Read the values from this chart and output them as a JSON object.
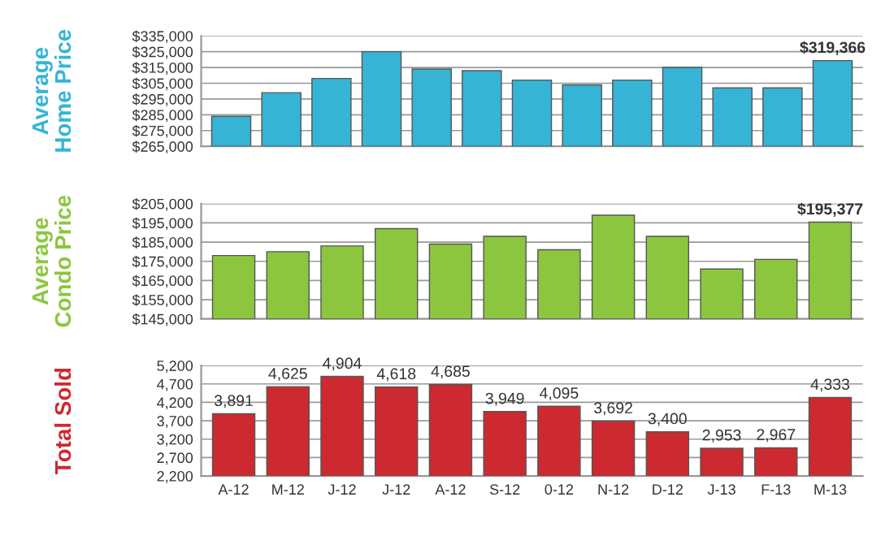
{
  "chart_data": [
    {
      "type": "bar",
      "ylabel": "Average\nHome Price",
      "categories": [
        null,
        null,
        null,
        null,
        null,
        null,
        null,
        null,
        null,
        null,
        null,
        null,
        null
      ],
      "series": [
        {
          "color": "#35b4d6",
          "values": [
            284000,
            299000,
            308000,
            325000,
            314000,
            313000,
            307000,
            304000,
            307000,
            315000,
            302000,
            302000,
            319366
          ],
          "value_labels": [
            null,
            null,
            null,
            null,
            null,
            null,
            null,
            null,
            null,
            null,
            null,
            null,
            "$319,366"
          ]
        }
      ],
      "ylim": [
        265000,
        335000
      ],
      "yticks": [
        {
          "value": 265000,
          "label": "$265,000"
        },
        {
          "value": 275000,
          "label": "$275,000"
        },
        {
          "value": 285000,
          "label": "$285,000"
        },
        {
          "value": 295000,
          "label": "$295,000"
        },
        {
          "value": 305000,
          "label": "$305,000"
        },
        {
          "value": 315000,
          "label": "$315,000"
        },
        {
          "value": 325000,
          "label": "$325,000"
        },
        {
          "value": 335000,
          "label": "$335,000"
        }
      ],
      "grid": "y",
      "tick_labels": "y"
    },
    {
      "type": "bar",
      "ylabel": "Average\nCondo Price",
      "categories": [
        null,
        null,
        null,
        null,
        null,
        null,
        null,
        null,
        null,
        null,
        null,
        null
      ],
      "series": [
        {
          "color": "#8cc63e",
          "values": [
            178000,
            180000,
            183000,
            192000,
            184000,
            188000,
            181000,
            199000,
            188000,
            171000,
            176000,
            195377
          ],
          "value_labels": [
            null,
            null,
            null,
            null,
            null,
            null,
            null,
            null,
            null,
            null,
            null,
            "$195,377"
          ]
        }
      ],
      "ylim": [
        145000,
        205000
      ],
      "yticks": [
        {
          "value": 145000,
          "label": "$145,000"
        },
        {
          "value": 155000,
          "label": "$155,000"
        },
        {
          "value": 165000,
          "label": "$165,000"
        },
        {
          "value": 175000,
          "label": "$175,000"
        },
        {
          "value": 185000,
          "label": "$185,000"
        },
        {
          "value": 195000,
          "label": "$195,000"
        },
        {
          "value": 205000,
          "label": "$205,000"
        }
      ],
      "grid": "y",
      "tick_labels": "y"
    },
    {
      "type": "bar",
      "ylabel": "Total Sold",
      "categories": [
        "A-12",
        "M-12",
        "J-12",
        "J-12",
        "A-12",
        "S-12",
        "0-12",
        "N-12",
        "D-12",
        "J-13",
        "F-13",
        "M-13"
      ],
      "series": [
        {
          "color": "#cc2a30",
          "values": [
            3891,
            4625,
            4904,
            4618,
            4685,
            3949,
            4095,
            3692,
            3400,
            2953,
            2967,
            4333
          ],
          "value_labels": [
            "3,891",
            "4,625",
            "4,904",
            "4,618",
            "4,685",
            "3,949",
            "4,095",
            "3,692",
            "3,400",
            "2,953",
            "2,967",
            "4,333"
          ]
        }
      ],
      "ylim": [
        2200,
        5200
      ],
      "yticks": [
        {
          "value": 2200,
          "label": "2,200"
        },
        {
          "value": 2700,
          "label": "2,700"
        },
        {
          "value": 3200,
          "label": "3,200"
        },
        {
          "value": 3700,
          "label": "3,700"
        },
        {
          "value": 4200,
          "label": "4,200"
        },
        {
          "value": 4700,
          "label": "4,700"
        },
        {
          "value": 5200,
          "label": "5,200"
        }
      ],
      "grid": "y"
    }
  ]
}
